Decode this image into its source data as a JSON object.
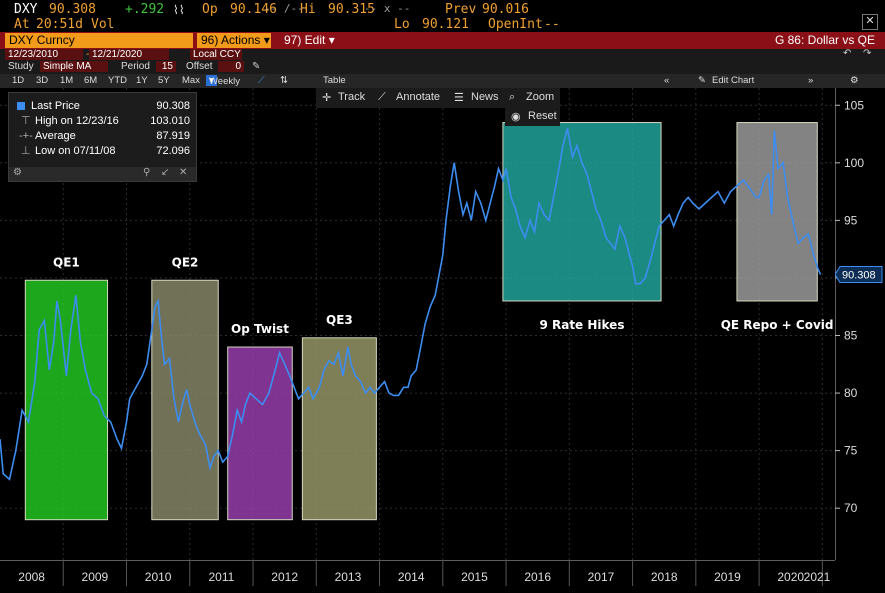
{
  "header": {
    "ticker": "DXY",
    "last": "90.308",
    "change": "+.292",
    "at_label": "At",
    "time": "20:51d",
    "vol_label": "Vol",
    "vol_value": "",
    "open_label": "Op",
    "open_value": "90.146",
    "dash1": "-- /--",
    "hi_label": "Hi",
    "hi_value": "90.315",
    "dash2": "-- x --",
    "lo_label": "Lo",
    "lo_value": "90.121",
    "prev_label": "Prev",
    "prev_value": "90.016",
    "openint_label": "OpenInt",
    "openint_value": "--"
  },
  "menubar": {
    "security": "DXY Curncy",
    "actions": "96) Actions",
    "edit": "97) Edit",
    "title": "G 86: Dollar vs QE"
  },
  "settings": {
    "start_date": "12/23/2010",
    "end_date": "12/21/2020",
    "currency": "Local CCY",
    "study_label": "Study",
    "study_value": "Simple MA",
    "period_label": "Period",
    "period_value": "15",
    "offset_label": "Offset",
    "offset_value": "0"
  },
  "toolbar": {
    "ranges": [
      "1D",
      "3D",
      "1M",
      "6M",
      "YTD",
      "1Y",
      "5Y",
      "Max"
    ],
    "frequency": "Weekly",
    "table_label": "Table",
    "edit_chart": "Edit Chart"
  },
  "chart_tools": {
    "track": "Track",
    "annotate": "Annotate",
    "news": "News",
    "zoom": "Zoom",
    "reset": "Reset"
  },
  "legend": {
    "last_label": "Last Price",
    "last_value": "90.308",
    "high_label": "High on 12/23/16",
    "high_value": "103.010",
    "avg_label": "Average",
    "avg_value": "87.919",
    "low_label": "Low on 07/11/08",
    "low_value": "72.096"
  },
  "colors": {
    "line": "#3d8df0",
    "qe1": "#22cc22",
    "qe2": "#8a8a6a",
    "optwist": "#9a3fb0",
    "qe3": "#9a9a6a",
    "hikes": "#20a8a0",
    "covid": "#a0a0a0"
  },
  "chart_data": {
    "type": "line",
    "title": "G 86: Dollar vs QE",
    "xlabel": "",
    "ylabel": "",
    "ylim": [
      65.5,
      106.5
    ],
    "y_ticks": [
      70,
      75,
      80,
      85,
      90,
      95,
      100,
      105
    ],
    "x_tick_labels": [
      "2008",
      "2009",
      "2010",
      "2011",
      "2012",
      "2013",
      "2014",
      "2015",
      "2016",
      "2017",
      "2018",
      "2019",
      "2020",
      "2021"
    ],
    "last_value_label": "90.308",
    "series": [
      {
        "name": "Last Price",
        "points": [
          [
            2008.0,
            76.0
          ],
          [
            2008.05,
            73.0
          ],
          [
            2008.15,
            72.5
          ],
          [
            2008.25,
            75.0
          ],
          [
            2008.35,
            78.5
          ],
          [
            2008.45,
            77.5
          ],
          [
            2008.55,
            81.0
          ],
          [
            2008.62,
            85.5
          ],
          [
            2008.7,
            86.3
          ],
          [
            2008.78,
            82.0
          ],
          [
            2008.85,
            84.5
          ],
          [
            2008.9,
            88.0
          ],
          [
            2008.95,
            86.5
          ],
          [
            2009.05,
            81.5
          ],
          [
            2009.12,
            85.5
          ],
          [
            2009.2,
            88.5
          ],
          [
            2009.27,
            84.5
          ],
          [
            2009.35,
            82.0
          ],
          [
            2009.45,
            80.0
          ],
          [
            2009.55,
            79.5
          ],
          [
            2009.65,
            78.0
          ],
          [
            2009.75,
            77.5
          ],
          [
            2009.85,
            76.0
          ],
          [
            2009.92,
            75.2
          ],
          [
            2010.0,
            77.5
          ],
          [
            2010.05,
            79.5
          ],
          [
            2010.15,
            80.5
          ],
          [
            2010.25,
            81.5
          ],
          [
            2010.32,
            82.5
          ],
          [
            2010.4,
            85.5
          ],
          [
            2010.45,
            87.5
          ],
          [
            2010.5,
            88.0
          ],
          [
            2010.55,
            85.0
          ],
          [
            2010.6,
            82.5
          ],
          [
            2010.68,
            83.0
          ],
          [
            2010.75,
            79.5
          ],
          [
            2010.82,
            77.5
          ],
          [
            2010.88,
            79.0
          ],
          [
            2010.95,
            80.3
          ],
          [
            2011.0,
            79.0
          ],
          [
            2011.08,
            77.5
          ],
          [
            2011.15,
            76.5
          ],
          [
            2011.25,
            75.5
          ],
          [
            2011.32,
            73.5
          ],
          [
            2011.38,
            74.5
          ],
          [
            2011.45,
            75.0
          ],
          [
            2011.52,
            74.0
          ],
          [
            2011.6,
            74.5
          ],
          [
            2011.68,
            76.5
          ],
          [
            2011.75,
            78.5
          ],
          [
            2011.82,
            77.5
          ],
          [
            2011.88,
            79.0
          ],
          [
            2011.95,
            80.0
          ],
          [
            2012.05,
            79.5
          ],
          [
            2012.15,
            79.0
          ],
          [
            2012.25,
            80.0
          ],
          [
            2012.35,
            82.0
          ],
          [
            2012.42,
            83.5
          ],
          [
            2012.5,
            82.5
          ],
          [
            2012.58,
            81.5
          ],
          [
            2012.65,
            80.5
          ],
          [
            2012.72,
            79.5
          ],
          [
            2012.8,
            80.0
          ],
          [
            2012.88,
            80.5
          ],
          [
            2012.95,
            79.5
          ],
          [
            2013.05,
            80.5
          ],
          [
            2013.12,
            82.0
          ],
          [
            2013.2,
            82.8
          ],
          [
            2013.28,
            82.5
          ],
          [
            2013.35,
            83.5
          ],
          [
            2013.42,
            81.5
          ],
          [
            2013.5,
            84.0
          ],
          [
            2013.55,
            82.5
          ],
          [
            2013.62,
            81.5
          ],
          [
            2013.7,
            81.0
          ],
          [
            2013.78,
            80.0
          ],
          [
            2013.85,
            80.5
          ],
          [
            2013.92,
            80.0
          ],
          [
            2014.0,
            80.5
          ],
          [
            2014.08,
            81.0
          ],
          [
            2014.15,
            80.0
          ],
          [
            2014.22,
            79.8
          ],
          [
            2014.3,
            79.8
          ],
          [
            2014.38,
            80.5
          ],
          [
            2014.45,
            80.5
          ],
          [
            2014.5,
            81.5
          ],
          [
            2014.58,
            82.0
          ],
          [
            2014.65,
            84.0
          ],
          [
            2014.72,
            86.0
          ],
          [
            2014.8,
            87.5
          ],
          [
            2014.88,
            88.5
          ],
          [
            2014.95,
            90.5
          ],
          [
            2015.0,
            92.0
          ],
          [
            2015.05,
            95.0
          ],
          [
            2015.12,
            98.0
          ],
          [
            2015.18,
            100.0
          ],
          [
            2015.25,
            97.5
          ],
          [
            2015.32,
            95.5
          ],
          [
            2015.38,
            96.5
          ],
          [
            2015.45,
            95.0
          ],
          [
            2015.52,
            97.5
          ],
          [
            2015.6,
            96.5
          ],
          [
            2015.68,
            95.0
          ],
          [
            2015.75,
            96.5
          ],
          [
            2015.82,
            98.0
          ],
          [
            2015.88,
            99.5
          ],
          [
            2015.95,
            98.5
          ],
          [
            2016.0,
            99.5
          ],
          [
            2016.08,
            97.0
          ],
          [
            2016.15,
            96.0
          ],
          [
            2016.22,
            94.5
          ],
          [
            2016.3,
            93.5
          ],
          [
            2016.38,
            95.0
          ],
          [
            2016.45,
            94.0
          ],
          [
            2016.52,
            96.5
          ],
          [
            2016.6,
            95.5
          ],
          [
            2016.68,
            95.0
          ],
          [
            2016.75,
            97.0
          ],
          [
            2016.82,
            99.0
          ],
          [
            2016.9,
            101.5
          ],
          [
            2016.97,
            103.0
          ],
          [
            2017.05,
            100.5
          ],
          [
            2017.12,
            101.5
          ],
          [
            2017.2,
            100.0
          ],
          [
            2017.28,
            99.0
          ],
          [
            2017.35,
            97.5
          ],
          [
            2017.42,
            96.0
          ],
          [
            2017.5,
            95.0
          ],
          [
            2017.58,
            93.5
          ],
          [
            2017.65,
            93.0
          ],
          [
            2017.72,
            92.5
          ],
          [
            2017.8,
            94.5
          ],
          [
            2017.88,
            93.5
          ],
          [
            2017.95,
            92.0
          ],
          [
            2018.0,
            91.0
          ],
          [
            2018.05,
            89.5
          ],
          [
            2018.12,
            89.5
          ],
          [
            2018.2,
            90.0
          ],
          [
            2018.28,
            91.5
          ],
          [
            2018.35,
            93.0
          ],
          [
            2018.42,
            94.5
          ],
          [
            2018.5,
            95.0
          ],
          [
            2018.58,
            95.5
          ],
          [
            2018.65,
            94.5
          ],
          [
            2018.72,
            95.5
          ],
          [
            2018.8,
            96.5
          ],
          [
            2018.88,
            97.0
          ],
          [
            2018.95,
            96.5
          ],
          [
            2019.05,
            96.0
          ],
          [
            2019.15,
            96.5
          ],
          [
            2019.25,
            97.0
          ],
          [
            2019.35,
            97.5
          ],
          [
            2019.45,
            96.5
          ],
          [
            2019.55,
            97.5
          ],
          [
            2019.65,
            98.0
          ],
          [
            2019.75,
            98.5
          ],
          [
            2019.85,
            97.8
          ],
          [
            2019.95,
            97.0
          ],
          [
            2020.0,
            97.0
          ],
          [
            2020.08,
            98.5
          ],
          [
            2020.15,
            99.0
          ],
          [
            2020.2,
            95.5
          ],
          [
            2020.24,
            102.8
          ],
          [
            2020.3,
            99.5
          ],
          [
            2020.38,
            100.0
          ],
          [
            2020.45,
            97.0
          ],
          [
            2020.55,
            94.5
          ],
          [
            2020.62,
            93.0
          ],
          [
            2020.7,
            93.5
          ],
          [
            2020.78,
            93.8
          ],
          [
            2020.86,
            92.0
          ],
          [
            2020.93,
            90.8
          ],
          [
            2020.97,
            90.3
          ]
        ]
      }
    ],
    "annotations": [
      {
        "label": "QE1",
        "x0": 2008.4,
        "x1": 2009.7,
        "y0": 69.0,
        "y1": 89.8,
        "color_key": "qe1"
      },
      {
        "label": "QE2",
        "x0": 2010.4,
        "x1": 2011.45,
        "y0": 69.0,
        "y1": 89.8,
        "color_key": "qe2"
      },
      {
        "label": "Op Twist",
        "x0": 2011.6,
        "x1": 2012.62,
        "y0": 69.0,
        "y1": 84.0,
        "color_key": "optwist"
      },
      {
        "label": "QE3",
        "x0": 2012.78,
        "x1": 2013.95,
        "y0": 69.0,
        "y1": 84.8,
        "color_key": "qe3"
      },
      {
        "label": "9 Rate Hikes",
        "x0": 2015.95,
        "x1": 2018.45,
        "y0": 88.0,
        "y1": 103.5,
        "color_key": "hikes"
      },
      {
        "label": "QE Repo + Covid",
        "x0": 2019.65,
        "x1": 2020.92,
        "y0": 88.0,
        "y1": 103.5,
        "color_key": "covid"
      }
    ]
  }
}
